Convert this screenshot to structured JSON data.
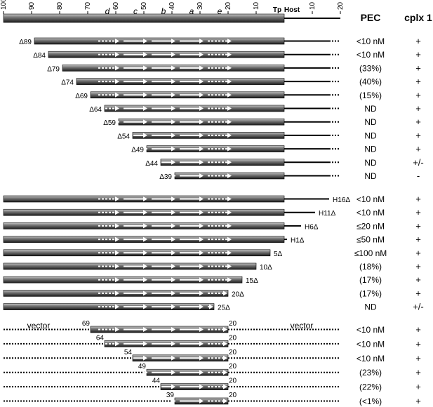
{
  "headers": {
    "pec": "PEC",
    "cplx": "cplx 1",
    "tp": "Tp",
    "host": "Host"
  },
  "axis": {
    "left_ticks": [
      "100",
      "90",
      "80",
      "70",
      "60",
      "50",
      "40",
      "30",
      "20",
      "10"
    ],
    "right_ticks": [
      "10",
      "20"
    ]
  },
  "segments": [
    "d",
    "c",
    "b",
    "a",
    "e"
  ],
  "vector_label": "vector",
  "groups": [
    {
      "name": "upstream-deletions",
      "rows": [
        {
          "label": "Δ89",
          "from": 89,
          "pec": "<10 nM",
          "cplx": "+"
        },
        {
          "label": "Δ84",
          "from": 84,
          "pec": "<10 nM",
          "cplx": "+"
        },
        {
          "label": "Δ79",
          "from": 79,
          "pec": "(33%)",
          "cplx": "+"
        },
        {
          "label": "Δ74",
          "from": 74,
          "pec": "(40%)",
          "cplx": "+"
        },
        {
          "label": "Δ69",
          "from": 69,
          "pec": "(15%)",
          "cplx": "+"
        },
        {
          "label": "Δ64",
          "from": 64,
          "pec": "ND",
          "cplx": "+"
        },
        {
          "label": "Δ59",
          "from": 59,
          "pec": "ND",
          "cplx": "+"
        },
        {
          "label": "Δ54",
          "from": 54,
          "pec": "ND",
          "cplx": "+"
        },
        {
          "label": "Δ49",
          "from": 49,
          "pec": "ND",
          "cplx": "+"
        },
        {
          "label": "Δ44",
          "from": 44,
          "pec": "ND",
          "cplx": "+/-"
        },
        {
          "label": "Δ39",
          "from": 39,
          "pec": "ND",
          "cplx": "-"
        }
      ]
    },
    {
      "name": "downstream-deletions",
      "rows": [
        {
          "label": "H16Δ",
          "to": -16,
          "pec": "<10 nM",
          "cplx": "+"
        },
        {
          "label": "H11Δ",
          "to": -11,
          "pec": "<10 nM",
          "cplx": "+"
        },
        {
          "label": "H6Δ",
          "to": -6,
          "pec": "≤20 nM",
          "cplx": "+"
        },
        {
          "label": "H1Δ",
          "to": -1,
          "pec": "≤50 nM",
          "cplx": "+"
        },
        {
          "label": "5Δ",
          "to": 5,
          "pec": "≤100 nM",
          "cplx": "+"
        },
        {
          "label": "10Δ",
          "to": 10,
          "pec": "(18%)",
          "cplx": "+"
        },
        {
          "label": "15Δ",
          "to": 15,
          "pec": "(17%)",
          "cplx": "+"
        },
        {
          "label": "20Δ",
          "to": 20,
          "pec": "(17%)",
          "cplx": "+"
        },
        {
          "label": "25Δ",
          "to": 25,
          "pec": "ND",
          "cplx": "+/-"
        }
      ]
    },
    {
      "name": "vector-inserts",
      "rows": [
        {
          "label": "69",
          "end_label": "20",
          "from": 69,
          "to": 20,
          "pec": "<10 nM",
          "cplx": "+"
        },
        {
          "label": "64",
          "end_label": "20",
          "from": 64,
          "to": 20,
          "pec": "<10 nM",
          "cplx": "+"
        },
        {
          "label": "54",
          "end_label": "20",
          "from": 54,
          "to": 20,
          "pec": "<10 nM",
          "cplx": "+"
        },
        {
          "label": "49",
          "end_label": "20",
          "from": 49,
          "to": 20,
          "pec": "(23%)",
          "cplx": "+"
        },
        {
          "label": "44",
          "end_label": "20",
          "from": 44,
          "to": 20,
          "pec": "(22%)",
          "cplx": "+"
        },
        {
          "label": "39",
          "end_label": "20",
          "from": 39,
          "to": 20,
          "pec": "(<1%)",
          "cplx": "+"
        }
      ]
    }
  ]
}
